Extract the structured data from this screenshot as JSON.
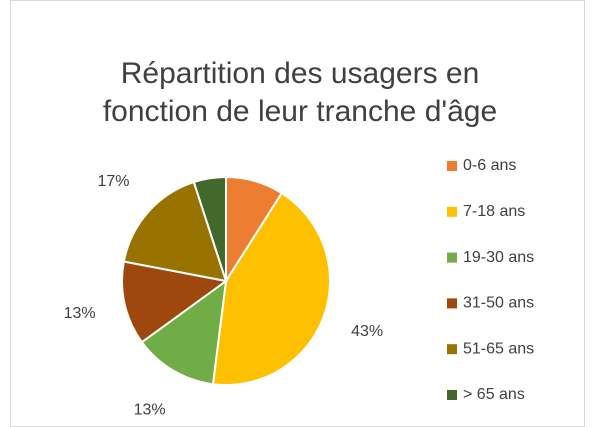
{
  "chart_data": {
    "type": "pie",
    "title": "Répartition des usagers en fonction de leur tranche d'âge",
    "categories": [
      "0-6 ans",
      "7-18 ans",
      "19-30 ans",
      "31-50 ans",
      "51-65 ans",
      "> 65 ans"
    ],
    "values": [
      9,
      43,
      13,
      13,
      17,
      5
    ],
    "value_labels": [
      null,
      "43%",
      "13%",
      "13%",
      "17%",
      null
    ],
    "colors": [
      "#ED7D31",
      "#FFC000",
      "#70AD47",
      "#9E480E",
      "#997300",
      "#43682B"
    ],
    "legend": "right"
  }
}
